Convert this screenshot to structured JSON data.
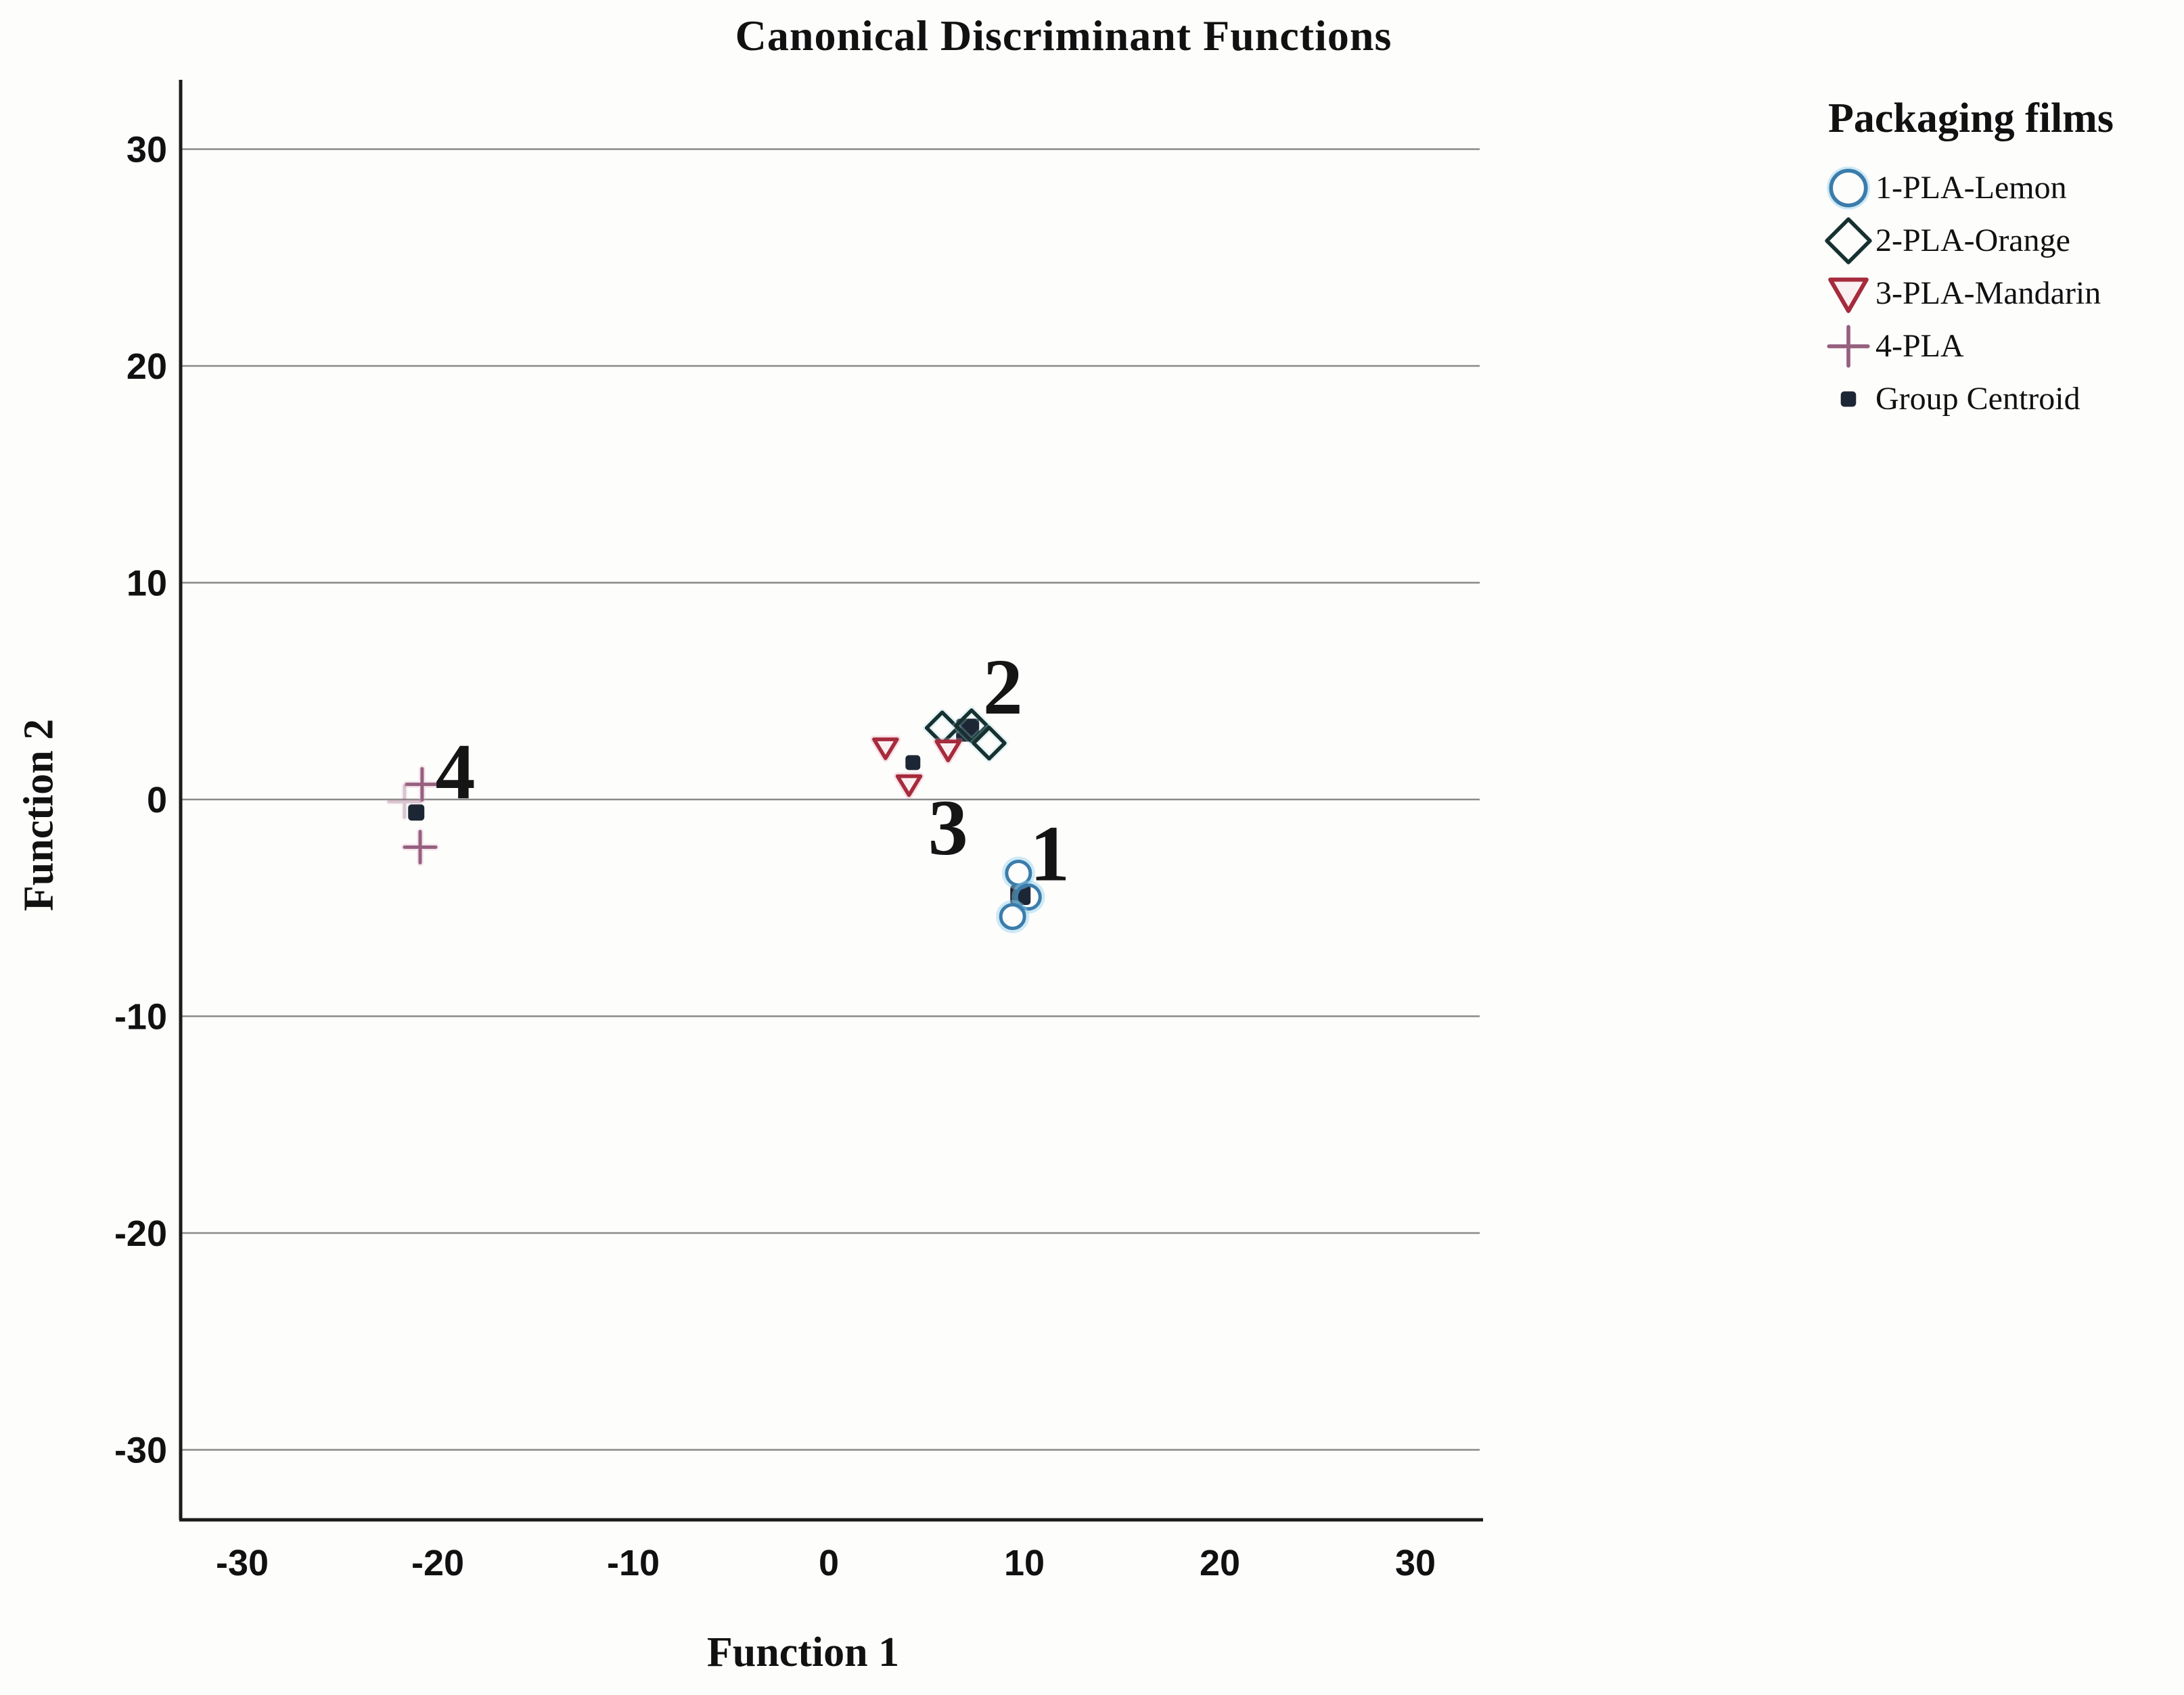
{
  "title": "Canonical Discriminant Functions",
  "axes": {
    "xlabel": "Function 1",
    "ylabel": "Function 2"
  },
  "legend": {
    "title": "Packaging films",
    "items": [
      {
        "label": "1-PLA-Lemon",
        "marker": "circle",
        "color": "#3b7cab"
      },
      {
        "label": "2-PLA-Orange",
        "marker": "diamond",
        "color": "#16312f"
      },
      {
        "label": "3-PLA-Mandarin",
        "marker": "triangle-down",
        "color": "#a62b3c"
      },
      {
        "label": "4-PLA",
        "marker": "plus",
        "color": "#96607f"
      },
      {
        "label": "Group Centroid",
        "marker": "square",
        "color": "#1d2634"
      }
    ]
  },
  "chart_data": {
    "type": "scatter",
    "title": "Canonical Discriminant Functions",
    "xlabel": "Function 1",
    "ylabel": "Function 2",
    "xlim": [
      -33,
      33
    ],
    "ylim": [
      -33,
      33
    ],
    "xticks": [
      -30,
      -20,
      -10,
      0,
      10,
      20,
      30
    ],
    "yticks": [
      30,
      20,
      10,
      0,
      -10,
      -20,
      -30
    ],
    "grid": "horizontal-only",
    "legend_position": "right",
    "series": [
      {
        "name": "Group Centroid",
        "marker": "square",
        "color": "#1d2634",
        "points": [
          {
            "x": 9.8,
            "y": -4.4,
            "size": 30
          },
          {
            "x": 7.1,
            "y": 3.2,
            "size": 34
          },
          {
            "x": 4.3,
            "y": 1.7,
            "size": 22
          },
          {
            "x": -21.1,
            "y": -0.6,
            "size": 24
          }
        ]
      },
      {
        "name": "1-PLA-Lemon",
        "marker": "circle",
        "color": "#3b7cab",
        "points": [
          {
            "x": 9.7,
            "y": -3.4
          },
          {
            "x": 10.2,
            "y": -4.5
          },
          {
            "x": 9.4,
            "y": -5.4
          }
        ]
      },
      {
        "name": "2-PLA-Orange",
        "marker": "diamond",
        "color": "#16312f",
        "points": [
          {
            "x": 5.8,
            "y": 3.3
          },
          {
            "x": 7.3,
            "y": 3.4
          },
          {
            "x": 8.2,
            "y": 2.6
          }
        ]
      },
      {
        "name": "3-PLA-Mandarin",
        "marker": "triangle-down",
        "color": "#a62b3c",
        "points": [
          {
            "x": 2.9,
            "y": 2.4
          },
          {
            "x": 6.1,
            "y": 2.3
          },
          {
            "x": 4.1,
            "y": 0.7
          }
        ]
      },
      {
        "name": "4-PLA",
        "marker": "plus",
        "color": "#96607f",
        "points": [
          {
            "x": -20.8,
            "y": 0.7
          },
          {
            "x": -21.7,
            "y": -0.1,
            "opacity": 0.35
          },
          {
            "x": -20.9,
            "y": -2.2
          }
        ]
      }
    ],
    "annotations": [
      {
        "text": "1",
        "x": 11.3,
        "y": -2.5
      },
      {
        "text": "2",
        "x": 8.9,
        "y": 5.2
      },
      {
        "text": "3",
        "x": 6.1,
        "y": -1.3
      },
      {
        "text": "4",
        "x": -19.1,
        "y": 1.3
      }
    ]
  },
  "style_colors": {
    "gridline": "#8a8a8a",
    "axis_line": "#1c1c1c",
    "text": "#111111",
    "circle_halo": "rgba(145,208,238,0.45)",
    "diamond_halo": "rgba(160,215,225,0.28)",
    "triangle_halo": "rgba(230,160,175,0.30)",
    "plus_halo": "rgba(220,170,195,0.28)",
    "triangle_fill": "#fbf0f1"
  }
}
